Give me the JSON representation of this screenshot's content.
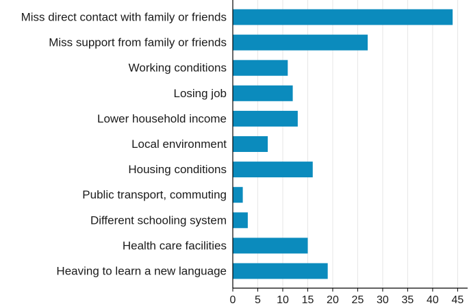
{
  "chart_data": {
    "type": "bar",
    "orientation": "horizontal",
    "title": "",
    "xlabel": "",
    "ylabel": "",
    "categories": [
      "Miss direct contact with family or friends",
      "Miss support from family or friends",
      "Working conditions",
      "Losing job",
      "Lower household income",
      "Local environment",
      "Housing conditions",
      "Public transport, commuting",
      "Different schooling system",
      "Health care facilities",
      "Heaving to learn a new language"
    ],
    "values": [
      44,
      27,
      11,
      12,
      13,
      7,
      16,
      2,
      3,
      15,
      19
    ],
    "xlim": [
      0,
      47
    ],
    "xticks": [
      0,
      5,
      10,
      15,
      20,
      25,
      30,
      35,
      40,
      45
    ],
    "grid": true,
    "colors": {
      "bar": "#0b8bbd",
      "grid": "#e6e6e6",
      "axis": "#000000",
      "text": "#1a1a1a"
    }
  }
}
